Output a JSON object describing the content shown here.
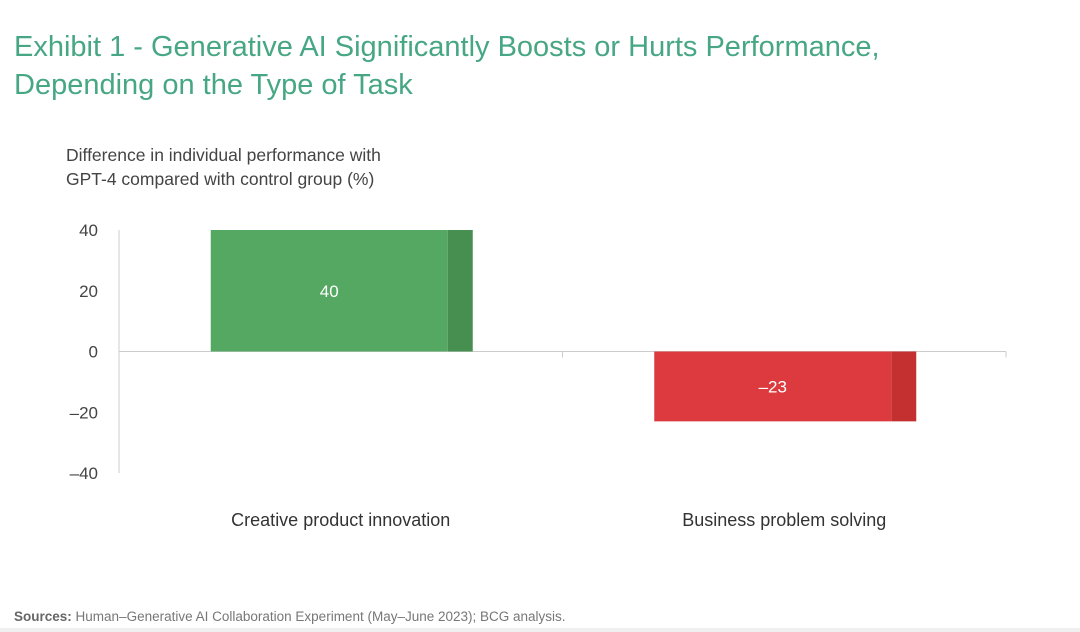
{
  "title_line1": "Exhibit 1 - Generative AI Significantly Boosts or Hurts Performance,",
  "title_line2": "Depending on the Type of Task",
  "sources_label": "Sources:",
  "sources_text": "Human–Generative AI Collaboration Experiment (May–June 2023); BCG analysis.",
  "chart_data": {
    "type": "bar",
    "title": "Exhibit 1 - Generative AI Significantly Boosts or Hurts Performance, Depending on the Type of Task",
    "ylabel_line1": "Difference in individual performance with",
    "ylabel_line2": "GPT-4 compared with control group (%)",
    "xlabel": "",
    "categories": [
      "Creative product innovation",
      "Business problem solving"
    ],
    "values": [
      40,
      -23
    ],
    "data_labels": [
      "40",
      "–23"
    ],
    "ylim": [
      -40,
      40
    ],
    "yticks": [
      40,
      20,
      0,
      -20,
      -40
    ],
    "ytick_labels": [
      "40",
      "20",
      "0",
      "–20",
      "–40"
    ],
    "grid": false,
    "colors": {
      "positive": "#55a862",
      "positive_shade": "#468f51",
      "negative": "#dc3a3e",
      "negative_shade": "#c3302f",
      "axis": "#cccccc",
      "title": "#47a785"
    }
  }
}
